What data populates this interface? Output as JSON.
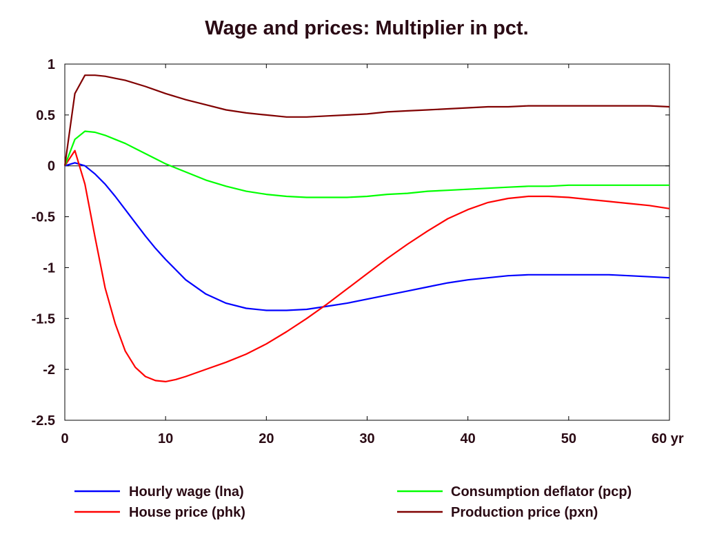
{
  "chart_data": {
    "type": "line",
    "title": "Wage and prices: Multiplier in pct.",
    "xlabel": "",
    "ylabel": "",
    "x_unit": "yr",
    "xlim": [
      0,
      60
    ],
    "ylim": [
      -2.5,
      1
    ],
    "x_ticks": [
      0,
      10,
      20,
      30,
      40,
      50,
      60
    ],
    "x_tick_labels": [
      "0",
      "10",
      "20",
      "30",
      "40",
      "50",
      "60 yr"
    ],
    "y_ticks": [
      1,
      0.5,
      0,
      -0.5,
      -1,
      -1.5,
      -2,
      -2.5
    ],
    "y_tick_labels": [
      "1",
      "0.5",
      "0",
      "-0.5",
      "-1",
      "-1.5",
      "-2",
      "-2.5"
    ],
    "zero_line": true,
    "grid": false,
    "legend_position": "bottom",
    "series": [
      {
        "name": "Hourly wage (lna)",
        "color": "#0000ff",
        "x": [
          0,
          1,
          2,
          3,
          4,
          5,
          6,
          7,
          8,
          9,
          10,
          12,
          14,
          16,
          18,
          20,
          22,
          24,
          26,
          28,
          30,
          32,
          34,
          36,
          38,
          40,
          42,
          44,
          46,
          48,
          50,
          52,
          54,
          56,
          58,
          60
        ],
        "y": [
          0,
          0.03,
          0.0,
          -0.08,
          -0.18,
          -0.3,
          -0.43,
          -0.56,
          -0.69,
          -0.81,
          -0.92,
          -1.12,
          -1.26,
          -1.35,
          -1.4,
          -1.42,
          -1.42,
          -1.41,
          -1.38,
          -1.35,
          -1.31,
          -1.27,
          -1.23,
          -1.19,
          -1.15,
          -1.12,
          -1.1,
          -1.08,
          -1.07,
          -1.07,
          -1.07,
          -1.07,
          -1.07,
          -1.08,
          -1.09,
          -1.1
        ]
      },
      {
        "name": "House price (phk)",
        "color": "#ff0000",
        "x": [
          0,
          1,
          2,
          3,
          4,
          5,
          6,
          7,
          8,
          9,
          10,
          11,
          12,
          14,
          16,
          18,
          20,
          22,
          24,
          26,
          28,
          30,
          32,
          34,
          36,
          38,
          40,
          42,
          44,
          46,
          48,
          50,
          52,
          54,
          56,
          58,
          60
        ],
        "y": [
          0,
          0.15,
          -0.18,
          -0.7,
          -1.2,
          -1.55,
          -1.82,
          -1.98,
          -2.07,
          -2.11,
          -2.12,
          -2.1,
          -2.07,
          -2.0,
          -1.93,
          -1.85,
          -1.75,
          -1.63,
          -1.5,
          -1.36,
          -1.21,
          -1.06,
          -0.91,
          -0.77,
          -0.64,
          -0.52,
          -0.43,
          -0.36,
          -0.32,
          -0.3,
          -0.3,
          -0.31,
          -0.33,
          -0.35,
          -0.37,
          -0.39,
          -0.42
        ]
      },
      {
        "name": "Consumption deflator (pcp)",
        "color": "#00ff00",
        "x": [
          0,
          1,
          2,
          3,
          4,
          5,
          6,
          7,
          8,
          9,
          10,
          12,
          14,
          16,
          18,
          20,
          22,
          24,
          26,
          28,
          30,
          32,
          34,
          36,
          38,
          40,
          42,
          44,
          46,
          48,
          50,
          52,
          54,
          56,
          58,
          60
        ],
        "y": [
          0,
          0.26,
          0.34,
          0.33,
          0.3,
          0.26,
          0.22,
          0.17,
          0.12,
          0.07,
          0.02,
          -0.06,
          -0.14,
          -0.2,
          -0.25,
          -0.28,
          -0.3,
          -0.31,
          -0.31,
          -0.31,
          -0.3,
          -0.28,
          -0.27,
          -0.25,
          -0.24,
          -0.23,
          -0.22,
          -0.21,
          -0.2,
          -0.2,
          -0.19,
          -0.19,
          -0.19,
          -0.19,
          -0.19,
          -0.19
        ]
      },
      {
        "name": "Production price (pxn)",
        "color": "#800000",
        "x": [
          0,
          1,
          2,
          3,
          4,
          5,
          6,
          8,
          10,
          12,
          14,
          16,
          18,
          20,
          22,
          24,
          26,
          28,
          30,
          32,
          34,
          36,
          38,
          40,
          42,
          44,
          46,
          48,
          50,
          52,
          54,
          56,
          58,
          60
        ],
        "y": [
          0,
          0.71,
          0.89,
          0.89,
          0.88,
          0.86,
          0.84,
          0.78,
          0.71,
          0.65,
          0.6,
          0.55,
          0.52,
          0.5,
          0.48,
          0.48,
          0.49,
          0.5,
          0.51,
          0.53,
          0.54,
          0.55,
          0.56,
          0.57,
          0.58,
          0.58,
          0.59,
          0.59,
          0.59,
          0.59,
          0.59,
          0.59,
          0.59,
          0.58
        ]
      }
    ],
    "legend": [
      {
        "series": 0,
        "row": 0,
        "col": 0
      },
      {
        "series": 2,
        "row": 0,
        "col": 1
      },
      {
        "series": 1,
        "row": 1,
        "col": 0
      },
      {
        "series": 3,
        "row": 1,
        "col": 1
      }
    ]
  }
}
